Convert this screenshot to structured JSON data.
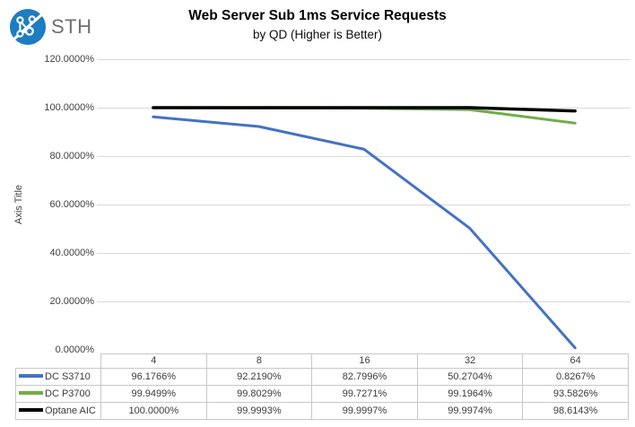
{
  "logo": {
    "text": "STH",
    "circle_color": "#1d7cc2"
  },
  "chart_data": {
    "type": "line",
    "title": "Web Server Sub 1ms Service Requests",
    "subtitle": "by QD (Higher is Better)",
    "xlabel": "",
    "ylabel": "Axis Title",
    "categories": [
      "4",
      "8",
      "16",
      "32",
      "64"
    ],
    "series": [
      {
        "name": "DC S3710",
        "color": "#4472C4",
        "stroke_width": 3,
        "values": [
          96.1766,
          92.219,
          82.7996,
          50.2704,
          0.8267
        ]
      },
      {
        "name": "DC P3700",
        "color": "#70AD47",
        "stroke_width": 3,
        "values": [
          99.9499,
          99.8029,
          99.7271,
          99.1964,
          93.5826
        ]
      },
      {
        "name": "Optane AIC",
        "color": "#000000",
        "stroke_width": 3.4,
        "values": [
          100.0,
          99.9993,
          99.9997,
          99.9974,
          98.6143
        ]
      }
    ],
    "y_tick_labels": [
      "120.0000%",
      "100.0000%",
      "80.0000%",
      "60.0000%",
      "40.0000%",
      "20.0000%",
      "0.0000%"
    ],
    "ylim": [
      0,
      120
    ],
    "grid": true,
    "gridline_color": "#d9d9d9",
    "legend_position": "data-table-left"
  },
  "table": {
    "headers": [
      "4",
      "8",
      "16",
      "32",
      "64"
    ],
    "rows": [
      {
        "label": "DC S3710",
        "swatch_color": "#4472C4",
        "values": [
          "96.1766%",
          "92.2190%",
          "82.7996%",
          "50.2704%",
          "0.8267%"
        ]
      },
      {
        "label": "DC P3700",
        "swatch_color": "#70AD47",
        "values": [
          "99.9499%",
          "99.8029%",
          "99.7271%",
          "99.1964%",
          "93.5826%"
        ]
      },
      {
        "label": "Optane AIC",
        "swatch_color": "#000000",
        "values": [
          "100.0000%",
          "99.9993%",
          "99.9997%",
          "99.9974%",
          "98.6143%"
        ]
      }
    ],
    "border_color": "#c8c8c8"
  }
}
